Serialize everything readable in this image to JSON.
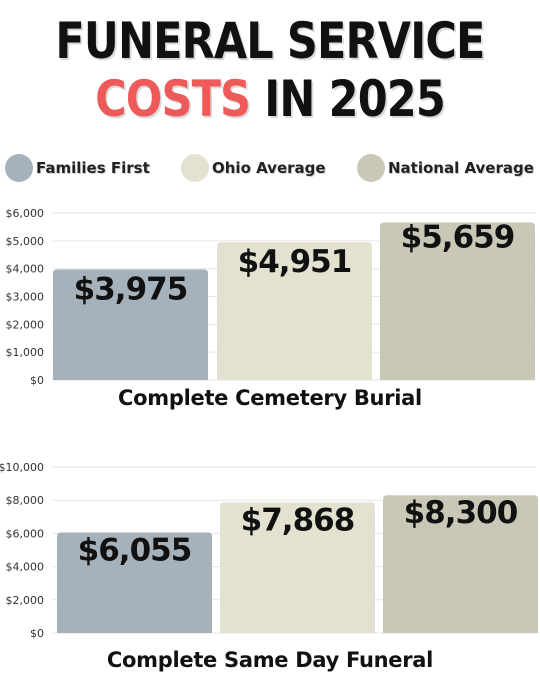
{
  "header": {
    "line1": "FUNERAL SERVICE",
    "line2_highlight": "COSTS",
    "line2_rest": "IN 2025"
  },
  "colors": {
    "highlight": "#ee5a5a",
    "families_first": "#a6b2bb",
    "ohio_average": "#e3e1cf",
    "national_average": "#c9c8b7"
  },
  "legend": [
    {
      "label": "Families First",
      "color": "#a6b2bb"
    },
    {
      "label": "Ohio Average",
      "color": "#e3e1cf"
    },
    {
      "label": "National Average",
      "color": "#c9c8b7"
    }
  ],
  "chart_data": [
    {
      "type": "bar",
      "title": "Complete Cemetery Burial",
      "categories": [
        "Families First",
        "Ohio Average",
        "National Average"
      ],
      "values": [
        3975,
        4951,
        5659
      ],
      "value_labels": [
        "$3,975",
        "$4,951",
        "$5,659"
      ],
      "ylim": [
        0,
        6000
      ],
      "yticks": [
        0,
        1000,
        2000,
        3000,
        4000,
        5000,
        6000
      ],
      "ytick_labels": [
        "$0",
        "$1,000",
        "$2,000",
        "$3,000",
        "$4,000",
        "$5,000",
        "$6,000"
      ],
      "grid": true
    },
    {
      "type": "bar",
      "title": "Complete Same Day Funeral",
      "categories": [
        "Families First",
        "Ohio Average",
        "National Average"
      ],
      "values": [
        6055,
        7868,
        8300
      ],
      "value_labels": [
        "$6,055",
        "$7,868",
        "$8,300"
      ],
      "ylim": [
        0,
        10000
      ],
      "yticks": [
        0,
        2000,
        4000,
        6000,
        8000,
        10000
      ],
      "ytick_labels": [
        "$0",
        "$2,000",
        "$4,000",
        "$6,000",
        "$8,000",
        "$10,000"
      ],
      "grid": true
    }
  ]
}
